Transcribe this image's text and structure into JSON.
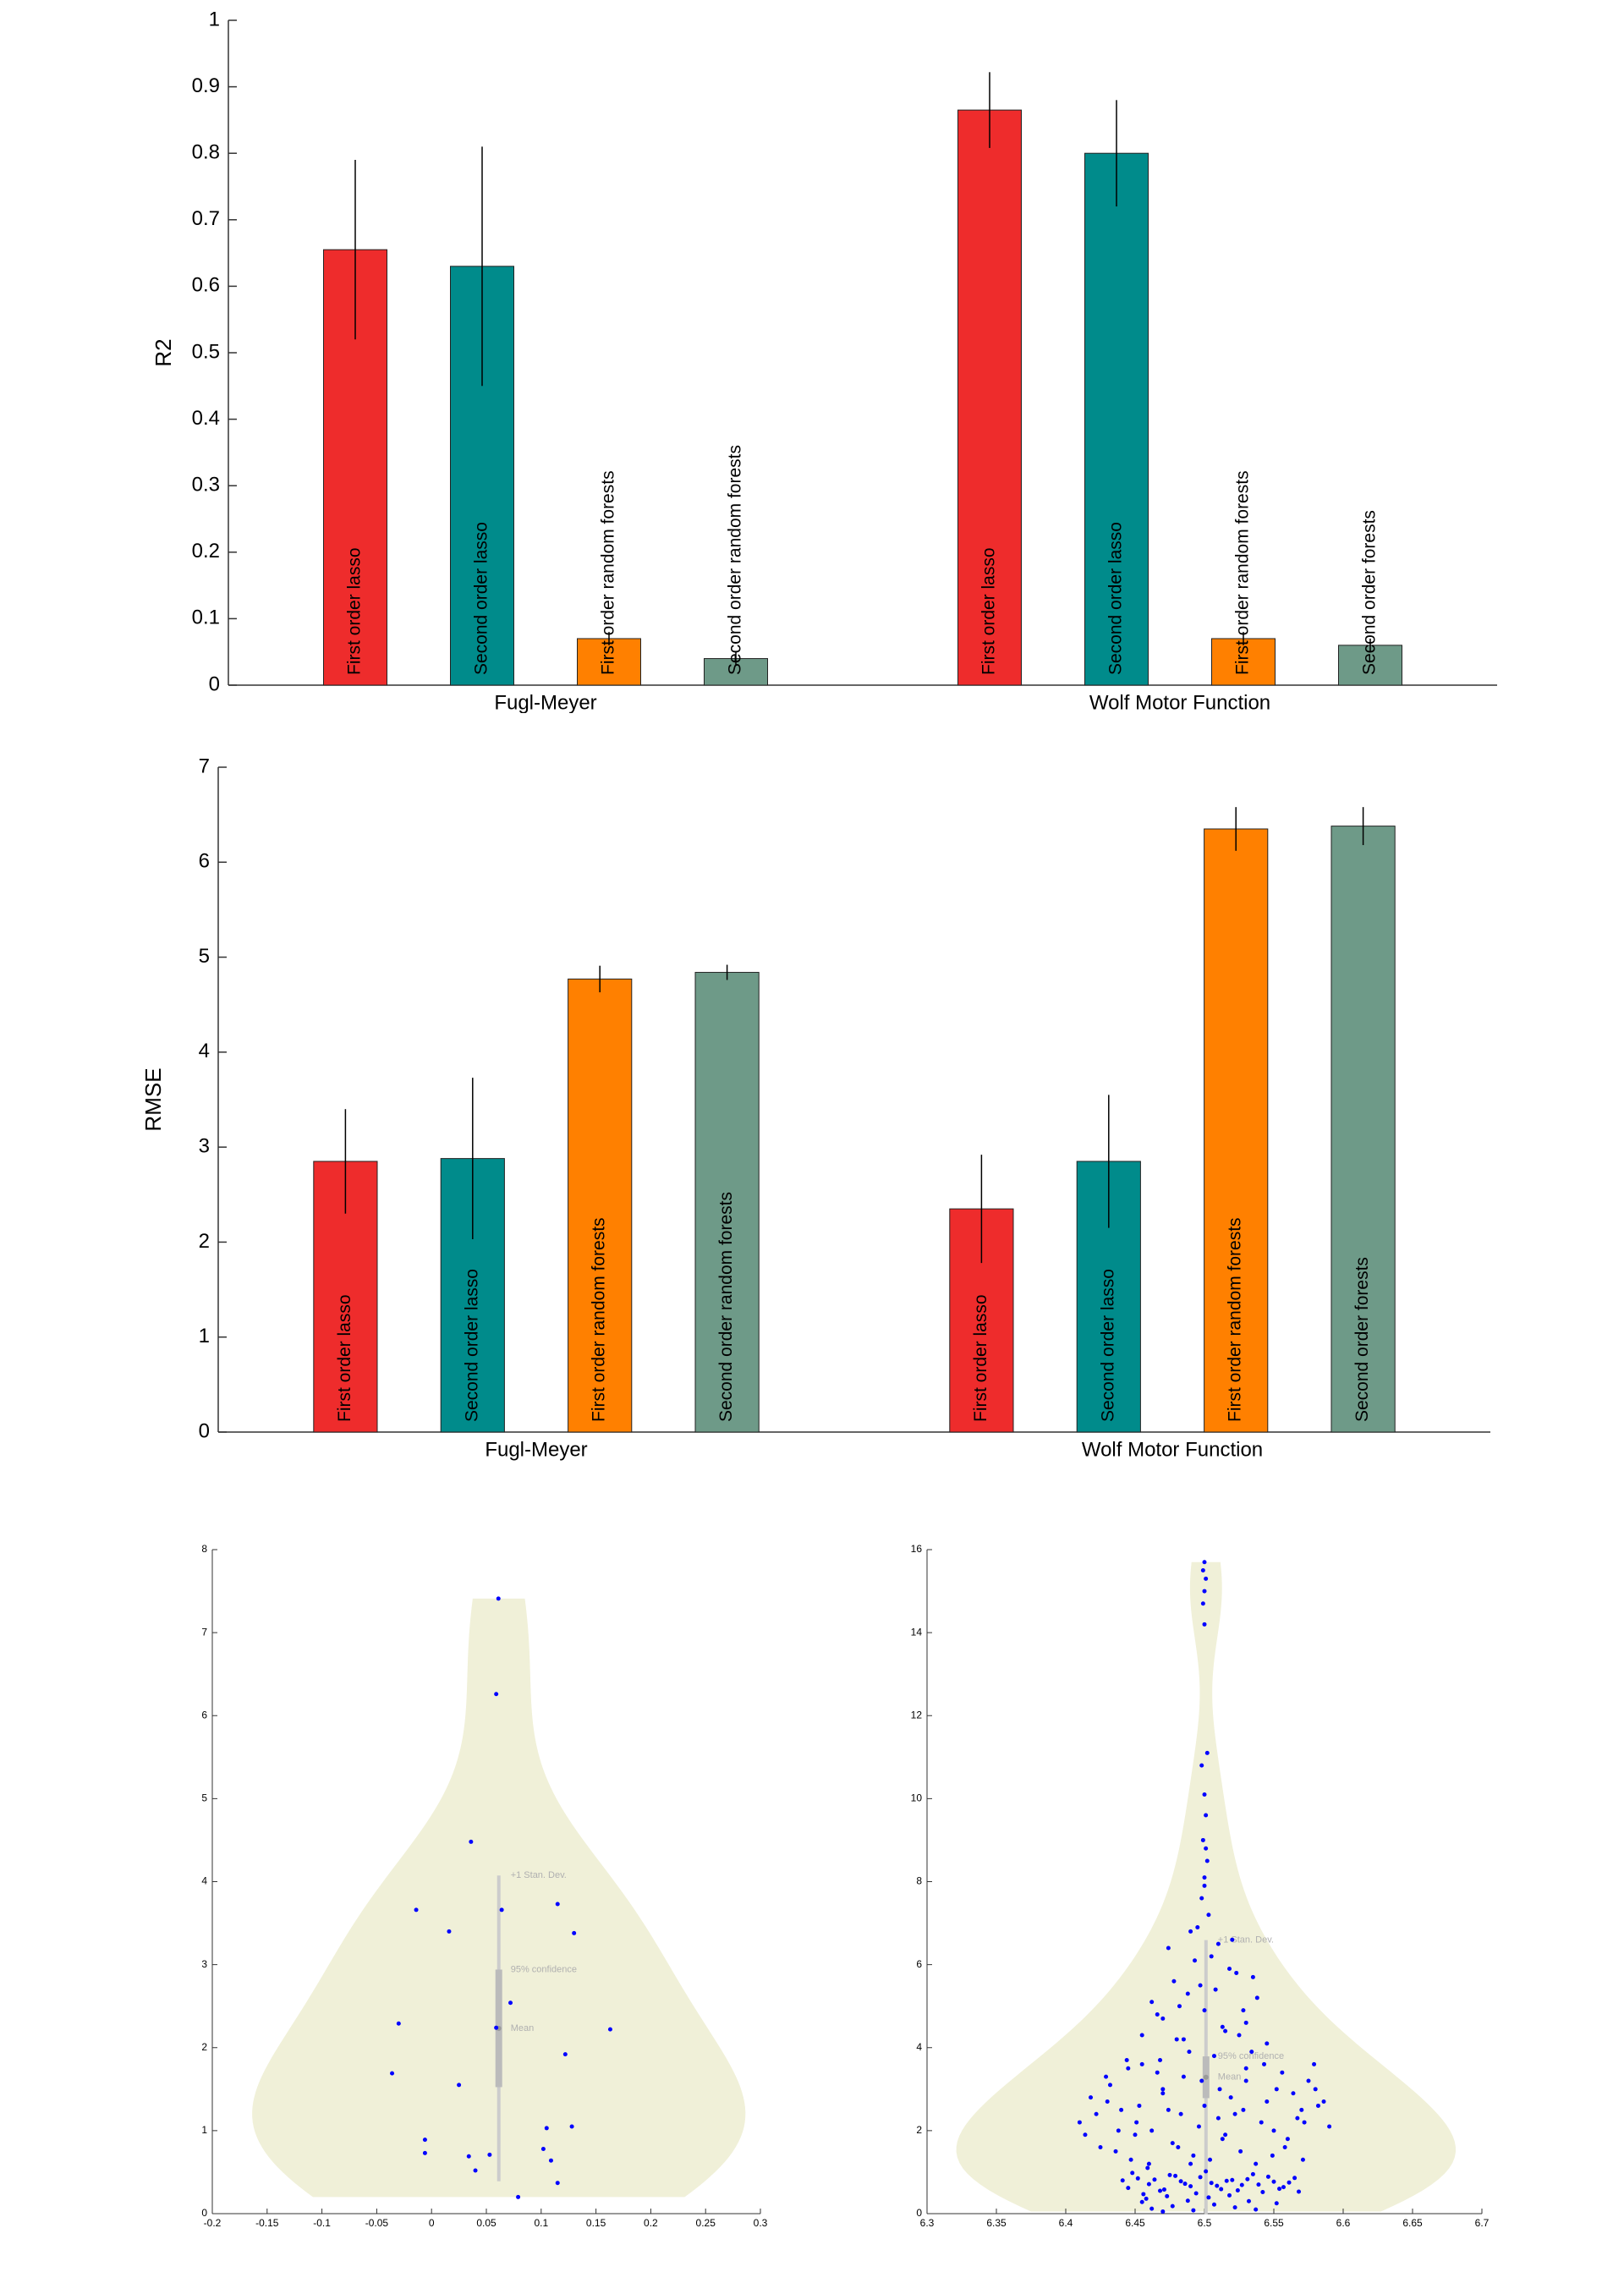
{
  "chart_data": [
    {
      "type": "bar",
      "ylabel": "R2",
      "categories": [
        "Fugl-Meyer",
        "Wolf Motor Function"
      ],
      "series": [
        {
          "color": "#ee2c2c",
          "labels": [
            "First order lasso",
            "First order lasso"
          ],
          "values": [
            0.655,
            0.865
          ],
          "errors": [
            0.135,
            0.057
          ]
        },
        {
          "color": "#008b8b",
          "labels": [
            "Second order lasso",
            "Second order lasso"
          ],
          "values": [
            0.63,
            0.8
          ],
          "errors": [
            0.18,
            0.08
          ]
        },
        {
          "color": "#ff8000",
          "labels": [
            "First order random forests",
            "First order random forests"
          ],
          "values": [
            0.07,
            0.07
          ],
          "errors": [
            0.01,
            0.01
          ]
        },
        {
          "color": "#6e9a88",
          "labels": [
            "Second order random forests",
            "Second order forests"
          ],
          "values": [
            0.04,
            0.06
          ],
          "errors": [
            0.01,
            0.01
          ]
        }
      ],
      "ylim": [
        0,
        1
      ],
      "yticks": [
        0,
        0.1,
        0.2,
        0.3,
        0.4,
        0.5,
        0.6,
        0.7,
        0.8,
        0.9,
        1
      ]
    },
    {
      "type": "bar",
      "ylabel": "RMSE",
      "categories": [
        "Fugl-Meyer",
        "Wolf Motor Function"
      ],
      "series": [
        {
          "color": "#ee2c2c",
          "labels": [
            "First order lasso",
            "First order lasso"
          ],
          "values": [
            2.85,
            2.35
          ],
          "errors": [
            0.55,
            0.57
          ]
        },
        {
          "color": "#008b8b",
          "labels": [
            "Second order lasso",
            "Second order lasso"
          ],
          "values": [
            2.88,
            2.85
          ],
          "errors": [
            0.85,
            0.7
          ]
        },
        {
          "color": "#ff8000",
          "labels": [
            "First order random forests",
            "First order random forests"
          ],
          "values": [
            4.77,
            6.35
          ],
          "errors": [
            0.14,
            0.23
          ]
        },
        {
          "color": "#6e9a88",
          "labels": [
            "Second order random forests",
            "Second order forests"
          ],
          "values": [
            4.84,
            6.38
          ],
          "errors": [
            0.08,
            0.2
          ]
        }
      ],
      "ylim": [
        0,
        7
      ],
      "yticks": [
        0,
        1,
        2,
        3,
        4,
        5,
        6,
        7
      ]
    },
    {
      "type": "violin",
      "color": "#0000ff",
      "violin_color": "#f0f0d8",
      "annotations": [
        "+1 Stan. Dev.",
        "95% confidence",
        "Mean"
      ],
      "x": [
        0.061,
        0.059,
        0.036,
        -0.014,
        0.064,
        0.115,
        0.016,
        0.13,
        0.072,
        -0.03,
        0.059,
        0.163,
        0.122,
        -0.036,
        0.025,
        0.105,
        0.128,
        -0.006,
        -0.006,
        0.034,
        0.053,
        0.102,
        0.109,
        0.04,
        0.115,
        0.079
      ],
      "values": [
        7.41,
        6.26,
        4.48,
        3.66,
        3.66,
        3.73,
        3.4,
        3.38,
        2.54,
        2.29,
        2.24,
        2.22,
        1.92,
        1.69,
        1.55,
        1.03,
        1.05,
        0.89,
        0.73,
        0.69,
        0.71,
        0.78,
        0.64,
        0.52,
        0.37,
        0.2
      ],
      "xlim": [
        -0.2,
        0.3
      ],
      "xticks": [
        -0.2,
        -0.15,
        -0.1,
        -0.05,
        0,
        0.05,
        0.1,
        0.15,
        0.2,
        0.25,
        0.3
      ],
      "ylim": [
        0,
        8
      ],
      "yticks": [
        0,
        1,
        2,
        3,
        4,
        5,
        6,
        7,
        8
      ]
    },
    {
      "type": "violin",
      "color": "#0000ff",
      "violin_color": "#f0f0d8",
      "annotations": [
        "+1 Stan. Dev.",
        "95% confidence",
        "Mean"
      ],
      "x": [
        6.445,
        6.452,
        6.46,
        6.468,
        6.475,
        6.483,
        6.49,
        6.497,
        6.505,
        6.512,
        6.52,
        6.527,
        6.535,
        6.542,
        6.55,
        6.557,
        6.565,
        6.448,
        6.456,
        6.464,
        6.471,
        6.479,
        6.486,
        6.494,
        6.501,
        6.509,
        6.516,
        6.524,
        6.531,
        6.539,
        6.546,
        6.554,
        6.561,
        6.568,
        6.441,
        6.458,
        6.473,
        6.488,
        6.503,
        6.518,
        6.462,
        6.477,
        6.492,
        6.507,
        6.522,
        6.537,
        6.552,
        6.455,
        6.47,
        6.532,
        6.41,
        6.418,
        6.425,
        6.432,
        6.44,
        6.447,
        6.455,
        6.462,
        6.47,
        6.477,
        6.485,
        6.492,
        6.5,
        6.507,
        6.515,
        6.522,
        6.53,
        6.537,
        6.545,
        6.552,
        6.56,
        6.567,
        6.575,
        6.582,
        6.59,
        6.414,
        6.422,
        6.429,
        6.436,
        6.444,
        6.451,
        6.459,
        6.466,
        6.474,
        6.481,
        6.489,
        6.496,
        6.504,
        6.511,
        6.519,
        6.526,
        6.534,
        6.541,
        6.549,
        6.556,
        6.564,
        6.571,
        6.579,
        6.586,
        6.438,
        6.445,
        6.453,
        6.46,
        6.468,
        6.483,
        6.498,
        6.513,
        6.528,
        6.543,
        6.558,
        6.572,
        6.58,
        6.43,
        6.45,
        6.47,
        6.49,
        6.51,
        6.53,
        6.55,
        6.57,
        6.455,
        6.462,
        6.47,
        6.478,
        6.485,
        6.493,
        6.5,
        6.508,
        6.515,
        6.523,
        6.53,
        6.538,
        6.545,
        6.466,
        6.474,
        6.482,
        6.49,
        6.497,
        6.505,
        6.513,
        6.52,
        6.528,
        6.535,
        6.48,
        6.488,
        6.495,
        6.503,
        6.51,
        6.518,
        6.525,
        6.498,
        6.5,
        6.502,
        6.499,
        6.501,
        6.5,
        6.498,
        6.502,
        6.5,
        6.499,
        6.5,
        6.501,
        6.499,
        6.5,
        6.501,
        6.5
      ],
      "values": [
        0.62,
        0.85,
        0.71,
        0.55,
        0.93,
        0.78,
        0.66,
        0.88,
        0.74,
        0.59,
        0.81,
        0.69,
        0.95,
        0.52,
        0.77,
        0.64,
        0.86,
        0.98,
        0.47,
        0.82,
        0.58,
        0.91,
        0.72,
        0.49,
        1.02,
        0.67,
        0.79,
        0.56,
        0.83,
        0.7,
        0.89,
        0.6,
        0.75,
        0.53,
        0.8,
        0.36,
        0.42,
        0.31,
        0.39,
        0.44,
        0.12,
        0.18,
        0.08,
        0.22,
        0.15,
        0.1,
        0.25,
        0.28,
        0.05,
        0.3,
        2.2,
        2.8,
        1.6,
        3.1,
        2.5,
        1.3,
        3.6,
        2.0,
        2.9,
        1.7,
        3.3,
        1.4,
        2.6,
        3.8,
        1.9,
        2.4,
        3.5,
        1.2,
        2.7,
        3.0,
        1.8,
        2.3,
        3.2,
        2.6,
        2.1,
        1.9,
        2.4,
        3.3,
        1.5,
        3.7,
        2.2,
        1.1,
        3.4,
        2.5,
        1.6,
        3.9,
        2.1,
        1.3,
        3.0,
        2.8,
        1.5,
        3.9,
        2.2,
        1.4,
        3.4,
        2.9,
        1.3,
        3.6,
        2.7,
        2.0,
        3.5,
        2.6,
        1.2,
        3.7,
        2.4,
        3.2,
        1.8,
        2.5,
        3.6,
        1.6,
        2.2,
        3.0,
        2.7,
        1.9,
        3.0,
        1.2,
        2.3,
        3.2,
        2.0,
        2.5,
        4.3,
        5.1,
        4.7,
        5.6,
        4.2,
        6.1,
        4.9,
        5.4,
        4.4,
        5.8,
        4.6,
        5.2,
        4.1,
        4.8,
        6.4,
        5.0,
        6.8,
        5.5,
        6.2,
        4.5,
        6.6,
        4.9,
        5.7,
        4.2,
        5.3,
        6.9,
        7.2,
        6.5,
        5.9,
        4.3,
        7.6,
        8.1,
        8.5,
        9.0,
        9.6,
        10.1,
        10.8,
        11.1,
        14.2,
        14.7,
        15.0,
        15.3,
        15.5,
        15.7,
        8.8,
        7.9
      ],
      "xlim": [
        6.3,
        6.7
      ],
      "xticks": [
        6.3,
        6.35,
        6.4,
        6.45,
        6.5,
        6.55,
        6.6,
        6.65,
        6.7
      ],
      "ylim": [
        0,
        16
      ],
      "yticks": [
        0,
        2,
        4,
        6,
        8,
        10,
        12,
        14,
        16
      ]
    }
  ]
}
